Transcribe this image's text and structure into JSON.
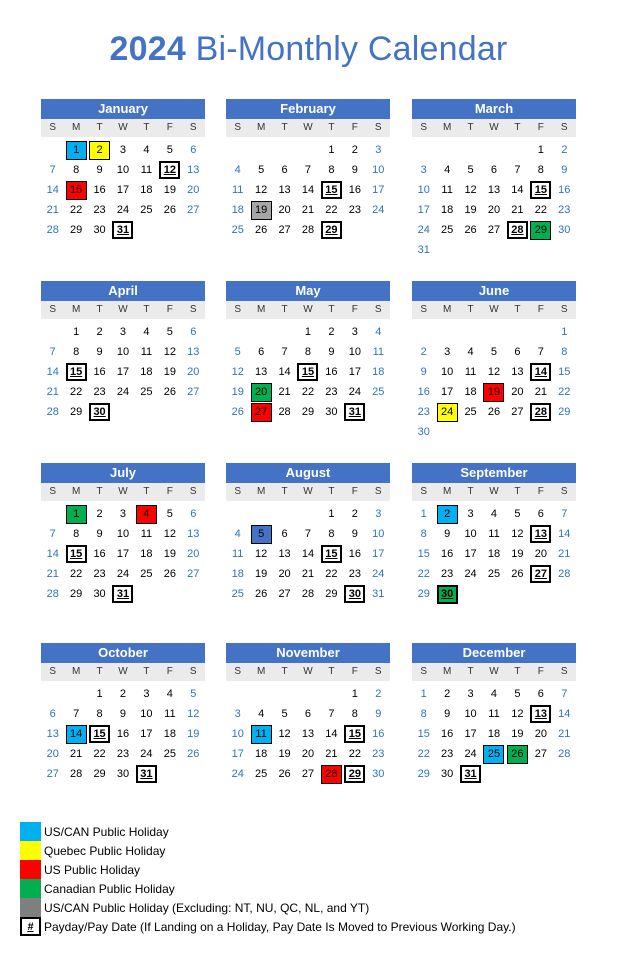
{
  "title": {
    "year": "2024",
    "rest": "Bi-Monthly Calendar"
  },
  "day_headers": [
    "S",
    "M",
    "T",
    "W",
    "T",
    "F",
    "S"
  ],
  "colors": {
    "blue": "#00b0f0",
    "yellow": "#ffff00",
    "red": "#ff0000",
    "green": "#00b050",
    "gray": "#a6a6a6",
    "darkblue": "#4472c4"
  },
  "months": [
    {
      "name": "January",
      "start": 1,
      "days": 31,
      "paydays": [
        12,
        31
      ],
      "hl": {
        "1": "blue",
        "2": "yellow",
        "15": "red"
      }
    },
    {
      "name": "February",
      "start": 4,
      "days": 29,
      "paydays": [
        15,
        29
      ],
      "hl": {
        "19": "gray"
      }
    },
    {
      "name": "March",
      "start": 5,
      "days": 31,
      "paydays": [
        15,
        28
      ],
      "hl": {
        "29": "green"
      }
    },
    {
      "name": "April",
      "start": 1,
      "days": 30,
      "paydays": [
        15,
        30
      ],
      "hl": {}
    },
    {
      "name": "May",
      "start": 3,
      "days": 31,
      "paydays": [
        15,
        31
      ],
      "hl": {
        "20": "green",
        "27": "red"
      }
    },
    {
      "name": "June",
      "start": 6,
      "days": 30,
      "paydays": [
        14,
        28
      ],
      "hl": {
        "19": "red",
        "24": "yellow"
      }
    },
    {
      "name": "July",
      "start": 1,
      "days": 31,
      "paydays": [
        15,
        31
      ],
      "hl": {
        "1": "green",
        "4": "red"
      }
    },
    {
      "name": "August",
      "start": 4,
      "days": 31,
      "paydays": [
        15,
        30
      ],
      "hl": {
        "5": "darkblue"
      }
    },
    {
      "name": "September",
      "start": 0,
      "days": 30,
      "paydays": [
        13,
        27,
        30
      ],
      "hl": {
        "2": "blue",
        "30": "green"
      }
    },
    {
      "name": "October",
      "start": 2,
      "days": 31,
      "paydays": [
        15,
        31
      ],
      "hl": {
        "14": "blue"
      }
    },
    {
      "name": "November",
      "start": 5,
      "days": 30,
      "paydays": [
        15,
        29
      ],
      "hl": {
        "11": "blue",
        "28": "red"
      }
    },
    {
      "name": "December",
      "start": 0,
      "days": 31,
      "paydays": [
        13,
        31
      ],
      "hl": {
        "25": "blue",
        "26": "green"
      }
    }
  ],
  "legend": [
    {
      "color": "blue",
      "label": "US/CAN Public Holiday"
    },
    {
      "color": "yellow",
      "label": "Quebec Public Holiday"
    },
    {
      "color": "red",
      "label": "US Public Holiday"
    },
    {
      "color": "green",
      "label": "Canadian Public Holiday"
    },
    {
      "color": "gray_dark",
      "label": "US/CAN Public Holiday (Excluding: NT, NU, QC, NL, and YT)"
    },
    {
      "color": "box",
      "symbol": "#",
      "label": "Payday/Pay Date (If Landing on a Holiday, Pay Date Is Moved to Previous Working Day.)"
    }
  ]
}
